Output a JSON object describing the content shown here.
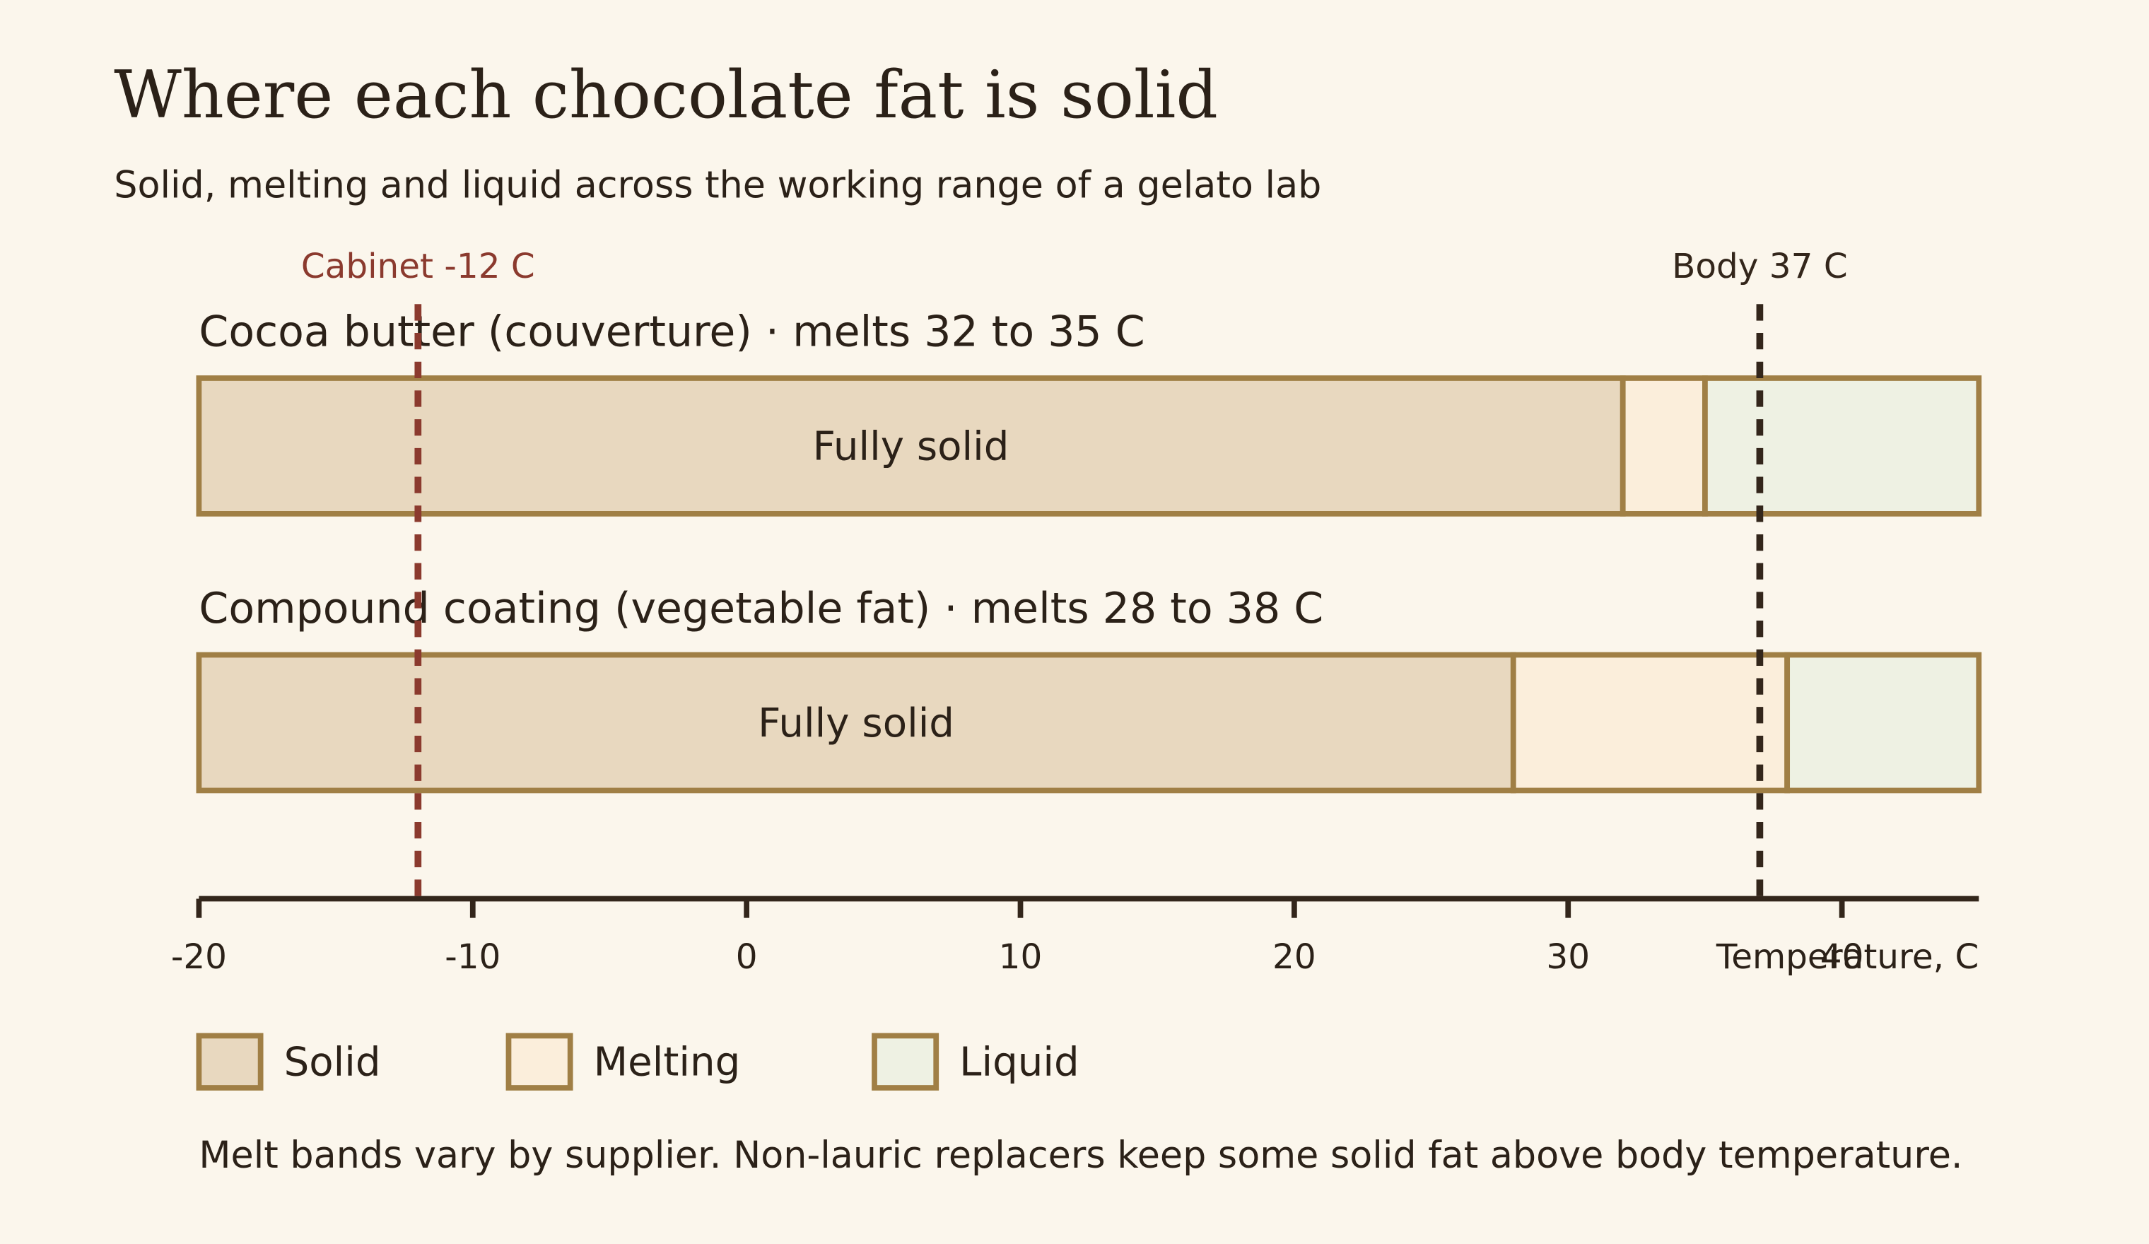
{
  "chart_data": {
    "type": "range_bar",
    "title": "Where each chocolate fat is solid",
    "subtitle": "Solid, melting and liquid across the working range of a gelato lab",
    "categories": [
      "Cocoa butter (couverture) · melts 32 to 35 C",
      "Compound coating (vegetable fat) · melts 28 to 38 C"
    ],
    "series": [
      {
        "name": "Solid",
        "color": "#e8d8bf",
        "start": [
          -20,
          -20
        ],
        "end": [
          32,
          28
        ],
        "value_labels": [
          "Fully solid",
          "Fully solid"
        ]
      },
      {
        "name": "Melting",
        "color": "#fbeedb",
        "start": [
          32,
          28
        ],
        "end": [
          35,
          38
        ]
      },
      {
        "name": "Liquid",
        "color": "#eef1e3",
        "start": [
          35,
          38
        ],
        "end": [
          45,
          45
        ]
      }
    ],
    "bar_stroke": "#a07f45",
    "xlim": [
      -20,
      45
    ],
    "xticks": [
      -20,
      -10,
      0,
      10,
      20,
      30,
      40
    ],
    "xlabel": "Temperature, C",
    "annotations": [
      {
        "x": -12,
        "label": "Cabinet -12 C",
        "color": "#8b3a2e"
      },
      {
        "x": 37,
        "label": "Body 37 C",
        "color": "#33261b"
      }
    ],
    "note": "Melt bands vary by supplier. Non-lauric replacers keep some solid fat above body temperature."
  }
}
